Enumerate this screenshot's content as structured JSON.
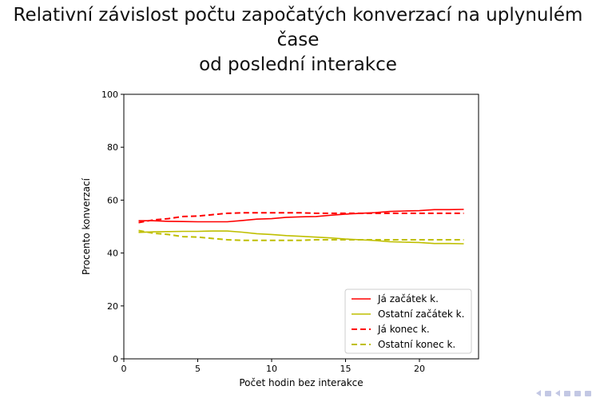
{
  "slide": {
    "title_line1": "Relativní závislost počtu započatých konverzací na uplynulém čase",
    "title_line2": "od poslední interakce"
  },
  "chart_data": {
    "type": "line",
    "title": "",
    "xlabel": "Počet hodin bez interakce",
    "ylabel": "Procento konverzací",
    "xlim": [
      0,
      24
    ],
    "ylim": [
      0,
      100
    ],
    "xticks": [
      0,
      5,
      10,
      15,
      20
    ],
    "yticks": [
      0,
      20,
      40,
      60,
      80,
      100
    ],
    "grid": false,
    "legend_position": "lower-right",
    "x": [
      1,
      2,
      3,
      4,
      5,
      6,
      7,
      8,
      9,
      10,
      11,
      12,
      13,
      14,
      15,
      16,
      17,
      18,
      19,
      20,
      21,
      22,
      23
    ],
    "series": [
      {
        "name": "Já začátek k.",
        "color": "#ff0000",
        "dash": "solid",
        "values": [
          52.2,
          52.2,
          52.0,
          51.9,
          51.8,
          51.8,
          51.8,
          52.3,
          52.8,
          53.0,
          53.5,
          53.7,
          53.8,
          54.3,
          54.7,
          55.0,
          55.3,
          55.7,
          55.9,
          56.0,
          56.4,
          56.4,
          56.5
        ]
      },
      {
        "name": "Ostatní začátek k.",
        "color": "#bfbf00",
        "dash": "solid",
        "values": [
          47.8,
          48.0,
          48.1,
          48.2,
          48.2,
          48.3,
          48.3,
          47.9,
          47.3,
          47.0,
          46.6,
          46.3,
          46.0,
          45.7,
          45.3,
          45.0,
          44.7,
          44.3,
          44.1,
          44.0,
          43.6,
          43.6,
          43.5
        ]
      },
      {
        "name": "Já konec k.",
        "color": "#ff0000",
        "dash": "dashed",
        "values": [
          51.5,
          52.5,
          53.0,
          53.8,
          54.0,
          54.5,
          55.0,
          55.2,
          55.2,
          55.2,
          55.2,
          55.2,
          55.0,
          55.0,
          55.0,
          55.0,
          55.0,
          55.0,
          55.0,
          55.0,
          55.0,
          55.0,
          55.0
        ]
      },
      {
        "name": "Ostatní konec k.",
        "color": "#bfbf00",
        "dash": "dashed",
        "values": [
          48.5,
          47.5,
          47.0,
          46.2,
          46.0,
          45.5,
          45.0,
          44.8,
          44.8,
          44.8,
          44.8,
          44.8,
          45.0,
          45.0,
          45.0,
          45.0,
          45.0,
          45.0,
          45.0,
          45.0,
          45.0,
          45.0,
          45.0
        ]
      }
    ]
  }
}
